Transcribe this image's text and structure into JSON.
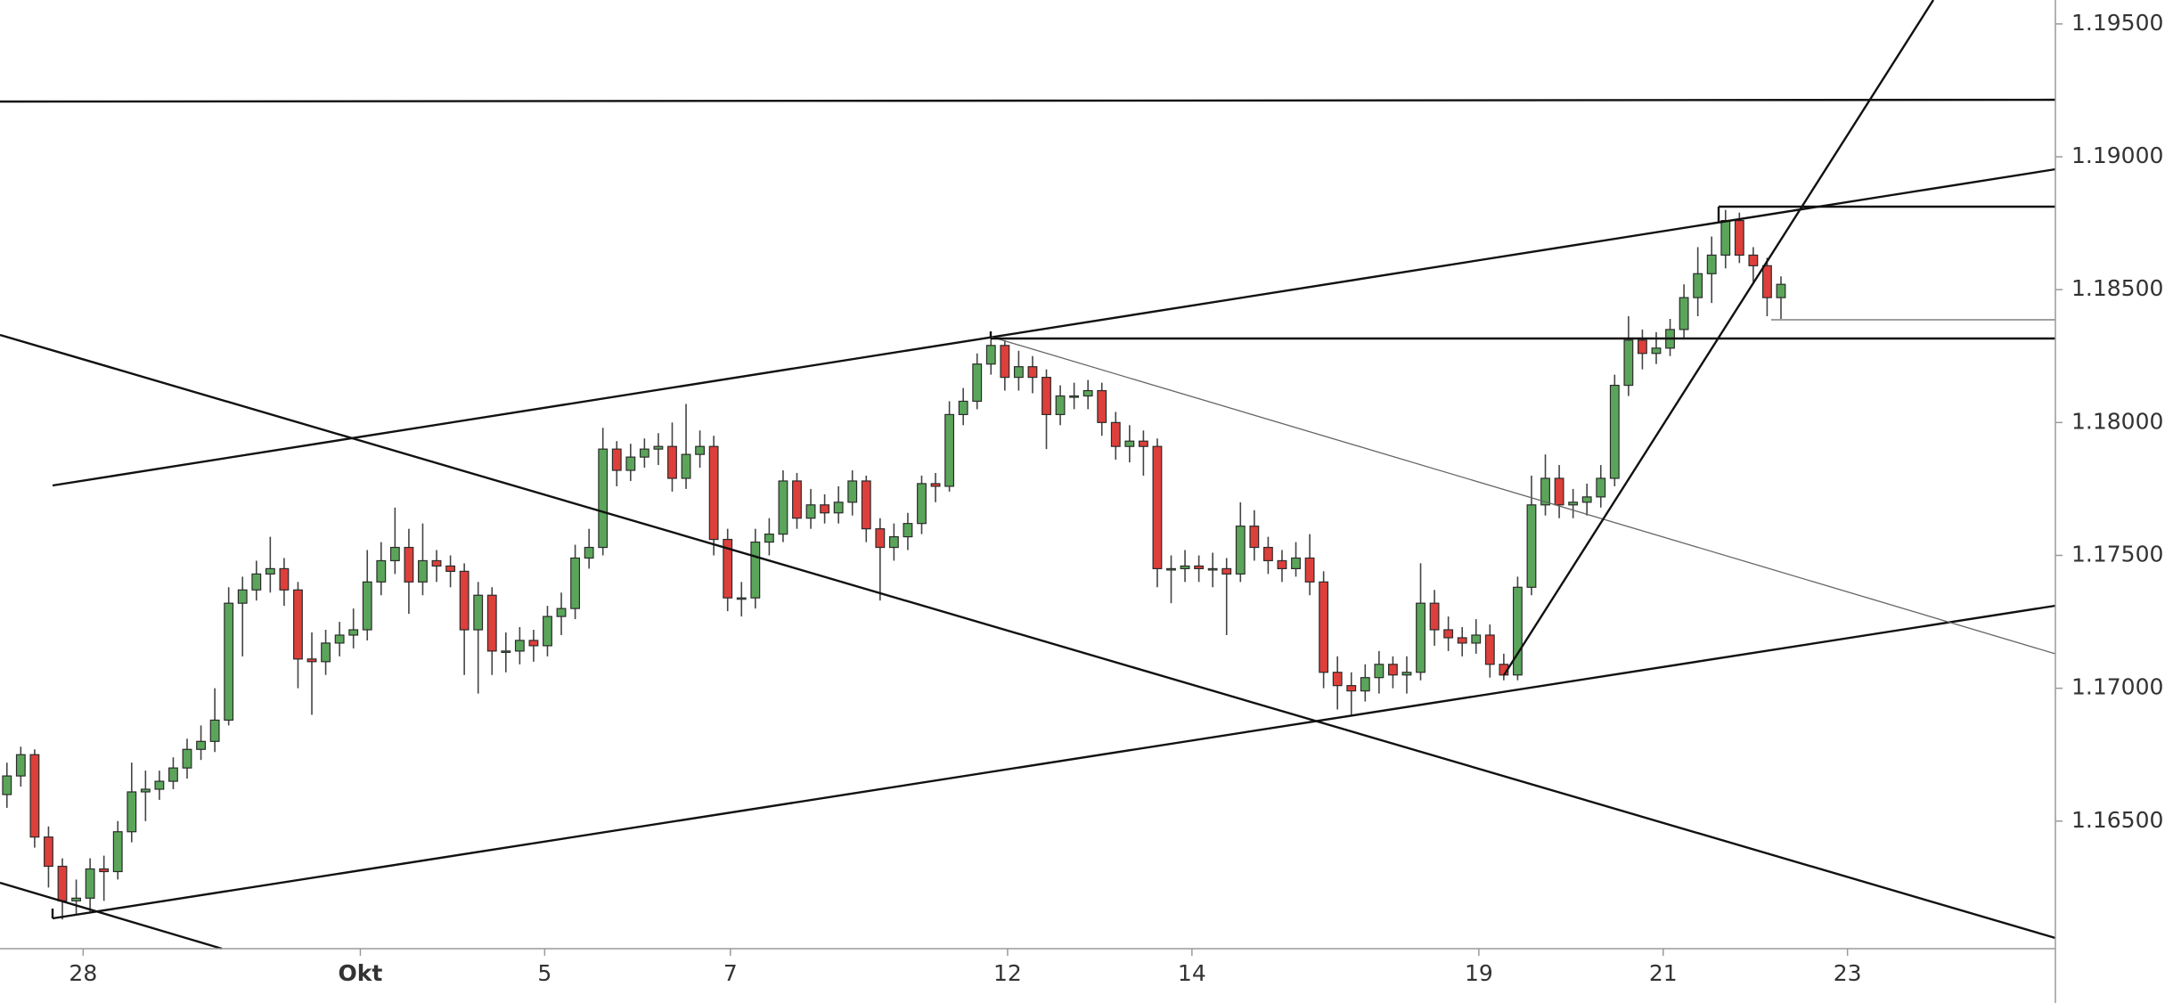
{
  "chart_data": {
    "type": "candlestick",
    "x": [
      0,
      1,
      2,
      3,
      4,
      5,
      6,
      7,
      8,
      9,
      10,
      11,
      12,
      13,
      14,
      15,
      16,
      17,
      18,
      19,
      20,
      21,
      22,
      23,
      24,
      25,
      26,
      27,
      28,
      29,
      30,
      31,
      32,
      33,
      34,
      35,
      36,
      37,
      38,
      39,
      40,
      41,
      42,
      43,
      44,
      45,
      46,
      47,
      48,
      49,
      50,
      51,
      52,
      53,
      54,
      55,
      56,
      57,
      58,
      59,
      60,
      61,
      62,
      63,
      64,
      65,
      66,
      67,
      68,
      69,
      70,
      71,
      72,
      73,
      74,
      75,
      76,
      77,
      78,
      79,
      80,
      81,
      82,
      83,
      84,
      85,
      86,
      87,
      88,
      89,
      90,
      91,
      92,
      93,
      94,
      95,
      96,
      97,
      98,
      99,
      100,
      101,
      102,
      103,
      104,
      105,
      106,
      107,
      108,
      109,
      110,
      111,
      112,
      113,
      114,
      115,
      116,
      117,
      118,
      119,
      120,
      121,
      122,
      123,
      124,
      125,
      126,
      127,
      128
    ],
    "open": [
      1.166,
      1.1667,
      1.1675,
      1.1644,
      1.1633,
      1.162,
      1.1621,
      1.1632,
      1.1631,
      1.1646,
      1.1661,
      1.1662,
      1.1665,
      1.167,
      1.1677,
      1.168,
      1.1688,
      1.1732,
      1.1737,
      1.1743,
      1.1745,
      1.1737,
      1.1711,
      1.171,
      1.1717,
      1.172,
      1.1722,
      1.174,
      1.1748,
      1.1753,
      1.174,
      1.1748,
      1.1746,
      1.1744,
      1.1722,
      1.1735,
      1.1714,
      1.1714,
      1.1718,
      1.1716,
      1.1727,
      1.173,
      1.1749,
      1.1753,
      1.179,
      1.1782,
      1.1787,
      1.179,
      1.1791,
      1.1779,
      1.1788,
      1.1791,
      1.1756,
      1.1734,
      1.1734,
      1.1755,
      1.1758,
      1.1778,
      1.1764,
      1.1769,
      1.1766,
      1.177,
      1.1778,
      1.176,
      1.1753,
      1.1757,
      1.1762,
      1.1777,
      1.1776,
      1.1803,
      1.1808,
      1.1822,
      1.1829,
      1.1817,
      1.1821,
      1.1817,
      1.1803,
      1.181,
      1.181,
      1.1812,
      1.18,
      1.1791,
      1.1793,
      1.1791,
      1.1745,
      1.1745,
      1.1746,
      1.1745,
      1.1745,
      1.1743,
      1.1761,
      1.1753,
      1.1748,
      1.1745,
      1.1749,
      1.174,
      1.1706,
      1.1701,
      1.1699,
      1.1704,
      1.1709,
      1.1705,
      1.1706,
      1.1732,
      1.1722,
      1.1719,
      1.1717,
      1.172,
      1.1709,
      1.1705,
      1.1738,
      1.1769,
      1.1779,
      1.1769,
      1.177,
      1.1772,
      1.1779,
      1.1814,
      1.1831,
      1.1826,
      1.1828,
      1.1835,
      1.1847,
      1.1856,
      1.1863,
      1.1876,
      1.1863,
      1.1859,
      1.1847
    ],
    "high": [
      1.1672,
      1.1678,
      1.1677,
      1.1648,
      1.1636,
      1.1628,
      1.1636,
      1.1637,
      1.165,
      1.1672,
      1.1669,
      1.1669,
      1.1674,
      1.1681,
      1.1686,
      1.17,
      1.1738,
      1.1742,
      1.1748,
      1.1757,
      1.1749,
      1.174,
      1.1721,
      1.1722,
      1.1725,
      1.173,
      1.1752,
      1.1755,
      1.1768,
      1.176,
      1.1762,
      1.1752,
      1.175,
      1.1747,
      1.174,
      1.1738,
      1.1721,
      1.1723,
      1.1722,
      1.1731,
      1.1736,
      1.1754,
      1.176,
      1.1798,
      1.1793,
      1.1792,
      1.1794,
      1.1796,
      1.18,
      1.1807,
      1.1797,
      1.1795,
      1.176,
      1.174,
      1.176,
      1.1764,
      1.1782,
      1.1781,
      1.1775,
      1.1773,
      1.1776,
      1.1782,
      1.178,
      1.1764,
      1.1762,
      1.1766,
      1.178,
      1.1781,
      1.1808,
      1.1813,
      1.1826,
      1.1832,
      1.1831,
      1.1827,
      1.1825,
      1.182,
      1.1814,
      1.1815,
      1.1816,
      1.1815,
      1.1804,
      1.1799,
      1.1797,
      1.1794,
      1.175,
      1.1752,
      1.175,
      1.1751,
      1.1749,
      1.177,
      1.1767,
      1.1757,
      1.1752,
      1.1755,
      1.1758,
      1.1744,
      1.1712,
      1.1706,
      1.1709,
      1.1714,
      1.1712,
      1.1712,
      1.1747,
      1.1737,
      1.1727,
      1.1723,
      1.1726,
      1.1724,
      1.1713,
      1.1742,
      1.178,
      1.1788,
      1.1784,
      1.1775,
      1.1777,
      1.1784,
      1.1818,
      1.184,
      1.1835,
      1.1834,
      1.1839,
      1.1852,
      1.1866,
      1.187,
      1.188,
      1.1879,
      1.1866,
      1.1862,
      1.1855
    ],
    "low": [
      1.1655,
      1.1663,
      1.164,
      1.1625,
      1.1613,
      1.1615,
      1.1616,
      1.162,
      1.1628,
      1.1642,
      1.165,
      1.1658,
      1.1662,
      1.1666,
      1.1673,
      1.1676,
      1.1686,
      1.1712,
      1.1733,
      1.1736,
      1.1731,
      1.17,
      1.169,
      1.1705,
      1.1712,
      1.1715,
      1.1718,
      1.1735,
      1.1743,
      1.1728,
      1.1735,
      1.174,
      1.1738,
      1.1705,
      1.1698,
      1.1705,
      1.1706,
      1.1709,
      1.171,
      1.1712,
      1.172,
      1.1726,
      1.1745,
      1.175,
      1.1776,
      1.1778,
      1.1783,
      1.1784,
      1.1774,
      1.1775,
      1.1783,
      1.175,
      1.1729,
      1.1727,
      1.173,
      1.175,
      1.1755,
      1.176,
      1.176,
      1.1762,
      1.1762,
      1.1765,
      1.1755,
      1.1733,
      1.1748,
      1.1752,
      1.1758,
      1.177,
      1.1774,
      1.1799,
      1.1805,
      1.1818,
      1.1812,
      1.1812,
      1.1811,
      1.179,
      1.1799,
      1.1805,
      1.1805,
      1.1795,
      1.1786,
      1.1785,
      1.178,
      1.1738,
      1.1732,
      1.174,
      1.174,
      1.1738,
      1.172,
      1.174,
      1.1748,
      1.1743,
      1.174,
      1.1742,
      1.1735,
      1.17,
      1.1692,
      1.169,
      1.1695,
      1.1698,
      1.17,
      1.1698,
      1.1703,
      1.1716,
      1.1714,
      1.1712,
      1.1713,
      1.1704,
      1.1703,
      1.1703,
      1.1735,
      1.1765,
      1.1764,
      1.1764,
      1.1765,
      1.1768,
      1.1776,
      1.181,
      1.182,
      1.1822,
      1.1825,
      1.1832,
      1.184,
      1.1845,
      1.1858,
      1.186,
      1.1853,
      1.184,
      1.1839
    ],
    "close": [
      1.1667,
      1.1675,
      1.1644,
      1.1633,
      1.162,
      1.1621,
      1.1632,
      1.1631,
      1.1646,
      1.1661,
      1.1662,
      1.1665,
      1.167,
      1.1677,
      1.168,
      1.1688,
      1.1732,
      1.1737,
      1.1743,
      1.1745,
      1.1737,
      1.1711,
      1.171,
      1.1717,
      1.172,
      1.1722,
      1.174,
      1.1748,
      1.1753,
      1.174,
      1.1748,
      1.1746,
      1.1744,
      1.1722,
      1.1735,
      1.1714,
      1.1714,
      1.1718,
      1.1716,
      1.1727,
      1.173,
      1.1749,
      1.1753,
      1.179,
      1.1782,
      1.1787,
      1.179,
      1.1791,
      1.1779,
      1.1788,
      1.1791,
      1.1756,
      1.1734,
      1.1734,
      1.1755,
      1.1758,
      1.1778,
      1.1764,
      1.1769,
      1.1766,
      1.177,
      1.1778,
      1.176,
      1.1753,
      1.1757,
      1.1762,
      1.1777,
      1.1776,
      1.1803,
      1.1808,
      1.1822,
      1.1829,
      1.1817,
      1.1821,
      1.1817,
      1.1803,
      1.181,
      1.181,
      1.1812,
      1.18,
      1.1791,
      1.1793,
      1.1791,
      1.1745,
      1.1745,
      1.1746,
      1.1745,
      1.1745,
      1.1743,
      1.1761,
      1.1753,
      1.1748,
      1.1745,
      1.1749,
      1.174,
      1.1706,
      1.1701,
      1.1699,
      1.1704,
      1.1709,
      1.1705,
      1.1706,
      1.1732,
      1.1722,
      1.1719,
      1.1717,
      1.172,
      1.1709,
      1.1705,
      1.1738,
      1.1769,
      1.1779,
      1.1769,
      1.177,
      1.1772,
      1.1779,
      1.1814,
      1.1831,
      1.1826,
      1.1828,
      1.1835,
      1.1847,
      1.1856,
      1.1863,
      1.1876,
      1.1863,
      1.1859,
      1.1847,
      1.1852
    ],
    "xlim": [
      -0.5,
      147.8
    ],
    "ylim": [
      1.1602,
      1.1959
    ],
    "xticks": [
      {
        "value": 5.5,
        "label": "28"
      },
      {
        "value": 25.5,
        "label": "Okt"
      },
      {
        "value": 38.8,
        "label": "5"
      },
      {
        "value": 52.2,
        "label": "7"
      },
      {
        "value": 72.2,
        "label": "12"
      },
      {
        "value": 85.5,
        "label": "14"
      },
      {
        "value": 106.2,
        "label": "19"
      },
      {
        "value": 119.5,
        "label": "21"
      },
      {
        "value": 132.8,
        "label": "23"
      }
    ],
    "yticks": [
      {
        "value": 1.165,
        "label": "1.16500"
      },
      {
        "value": 1.17,
        "label": "1.17000"
      },
      {
        "value": 1.175,
        "label": "1.17500"
      },
      {
        "value": 1.18,
        "label": "1.18000"
      },
      {
        "value": 1.185,
        "label": "1.18500"
      },
      {
        "value": 1.19,
        "label": "1.19000"
      },
      {
        "value": 1.195,
        "label": "1.19500"
      }
    ],
    "colors": {
      "up": "#5aa55a",
      "down": "#dd3f3b",
      "wick": "#444444",
      "outline": "#2b2b2b"
    }
  }
}
